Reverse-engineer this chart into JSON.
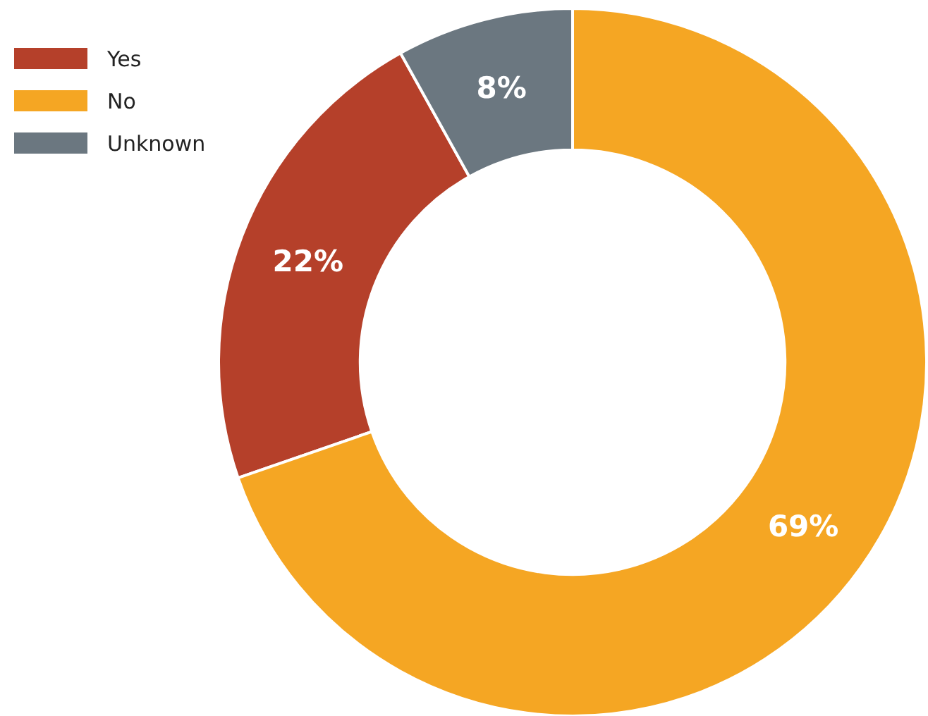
{
  "chart_data": {
    "type": "donut",
    "categories": [
      "Yes",
      "No",
      "Unknown"
    ],
    "values": [
      22,
      69,
      8
    ],
    "colors": [
      "#b5402a",
      "#f5a623",
      "#6b7780"
    ],
    "value_labels": [
      "22%",
      "69%",
      "8%"
    ],
    "legend": "top left"
  }
}
